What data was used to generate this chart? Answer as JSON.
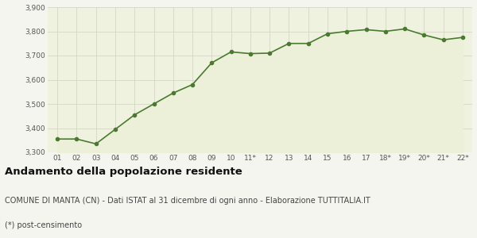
{
  "x_labels": [
    "01",
    "02",
    "03",
    "04",
    "05",
    "06",
    "07",
    "08",
    "09",
    "10",
    "11*",
    "12",
    "13",
    "14",
    "15",
    "16",
    "17",
    "18*",
    "19*",
    "20*",
    "21*",
    "22*"
  ],
  "y_values": [
    3355,
    3355,
    3335,
    3395,
    3455,
    3500,
    3545,
    3580,
    3670,
    3715,
    3708,
    3710,
    3750,
    3750,
    3790,
    3800,
    3807,
    3800,
    3810,
    3785,
    3765,
    3775
  ],
  "line_color": "#4a7a30",
  "fill_color": "#edf0d8",
  "marker_color": "#4a7a30",
  "bg_color": "#f0f2e0",
  "grid_color": "#d0d0c0",
  "fig_bg_color": "#f5f5ef",
  "ylim_min": 3300,
  "ylim_max": 3900,
  "yticks": [
    3300,
    3400,
    3500,
    3600,
    3700,
    3800,
    3900
  ],
  "title": "Andamento della popolazione residente",
  "subtitle": "COMUNE DI MANTA (CN) - Dati ISTAT al 31 dicembre di ogni anno - Elaborazione TUTTITALIA.IT",
  "footnote": "(*) post-censimento",
  "title_fontsize": 9.5,
  "subtitle_fontsize": 7.0,
  "footnote_fontsize": 7.0,
  "tick_fontsize": 6.5
}
